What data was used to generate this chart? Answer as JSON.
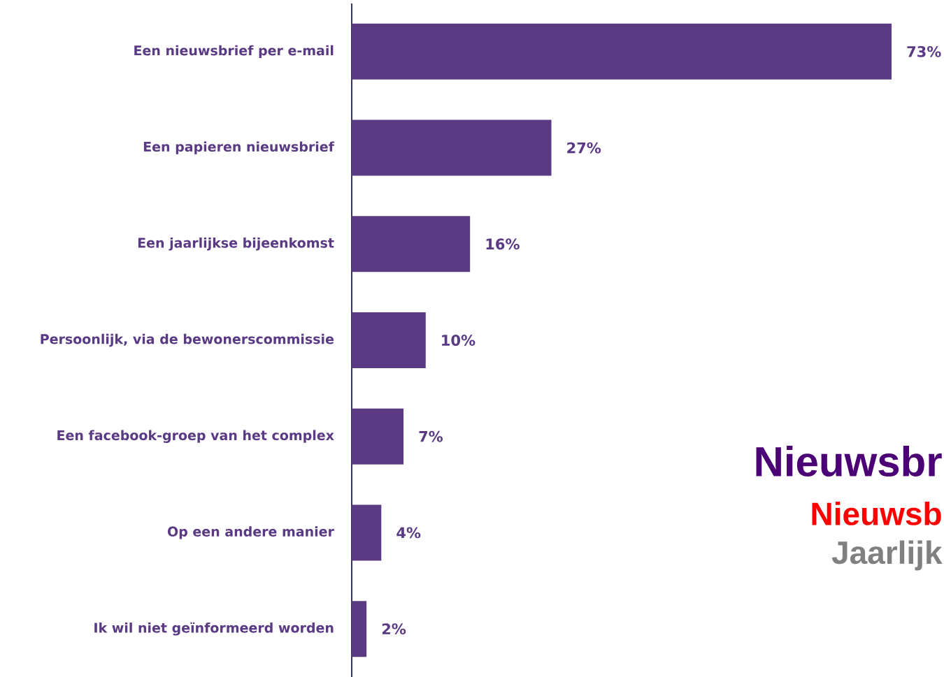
{
  "chart_data": {
    "type": "bar",
    "orientation": "horizontal",
    "categories": [
      "Een nieuwsbrief per e-mail",
      "Een papieren nieuwsbrief",
      "Een jaarlijkse bijeenkomst",
      "Persoonlijk, via de bewonerscommissie",
      "Een facebook-groep van het complex",
      "Op een andere manier",
      "Ik wil niet geïnformeerd worden"
    ],
    "values": [
      73,
      27,
      16,
      10,
      7,
      4,
      2
    ],
    "value_labels": [
      "73%",
      "27%",
      "16%",
      "10%",
      "7%",
      "4%",
      "2%"
    ],
    "color": "#5b3a84",
    "annotations": [
      "Nieuwsbr",
      "Nieuwsb",
      "Jaarlijk"
    ]
  }
}
